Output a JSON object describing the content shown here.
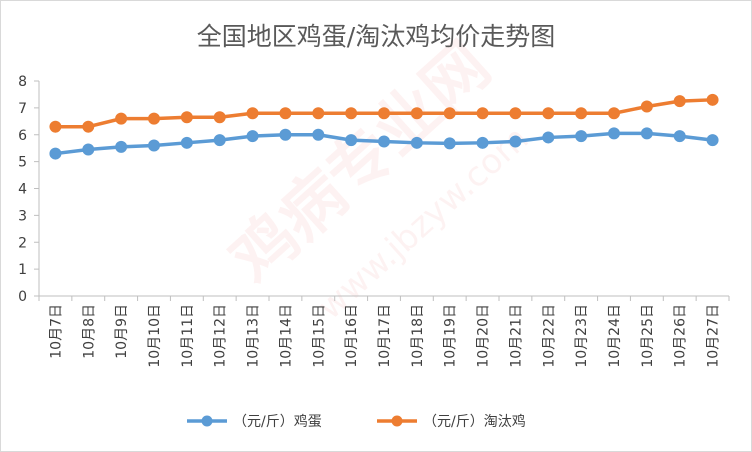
{
  "chart_data": {
    "type": "line",
    "title": "全国地区鸡蛋/淘汰鸡均价走势图",
    "xlabel": "",
    "ylabel": "",
    "ylim": [
      0,
      8
    ],
    "yticks": [
      0,
      1,
      2,
      3,
      4,
      5,
      6,
      7,
      8
    ],
    "grid": false,
    "legend_position": "bottom",
    "categories": [
      "10月7日",
      "10月8日",
      "10月9日",
      "10月10日",
      "10月11日",
      "10月12日",
      "10月13日",
      "10月14日",
      "10月15日",
      "10月16日",
      "10月17日",
      "10月18日",
      "10月19日",
      "10月20日",
      "10月21日",
      "10月22日",
      "10月23日",
      "10月24日",
      "10月25日",
      "10月26日",
      "10月27日"
    ],
    "series": [
      {
        "name": "（元/斤）鸡蛋",
        "color": "#5b9bd5",
        "values": [
          5.3,
          5.45,
          5.55,
          5.6,
          5.7,
          5.8,
          5.95,
          6.0,
          6.0,
          5.8,
          5.75,
          5.7,
          5.68,
          5.7,
          5.75,
          5.9,
          5.95,
          6.05,
          6.05,
          5.95,
          5.8
        ]
      },
      {
        "name": "（元/斤）淘汰鸡",
        "color": "#ed7d31",
        "values": [
          6.3,
          6.3,
          6.6,
          6.6,
          6.65,
          6.65,
          6.8,
          6.8,
          6.8,
          6.8,
          6.8,
          6.8,
          6.8,
          6.8,
          6.8,
          6.8,
          6.8,
          6.8,
          7.05,
          7.25,
          7.3
        ]
      }
    ]
  }
}
